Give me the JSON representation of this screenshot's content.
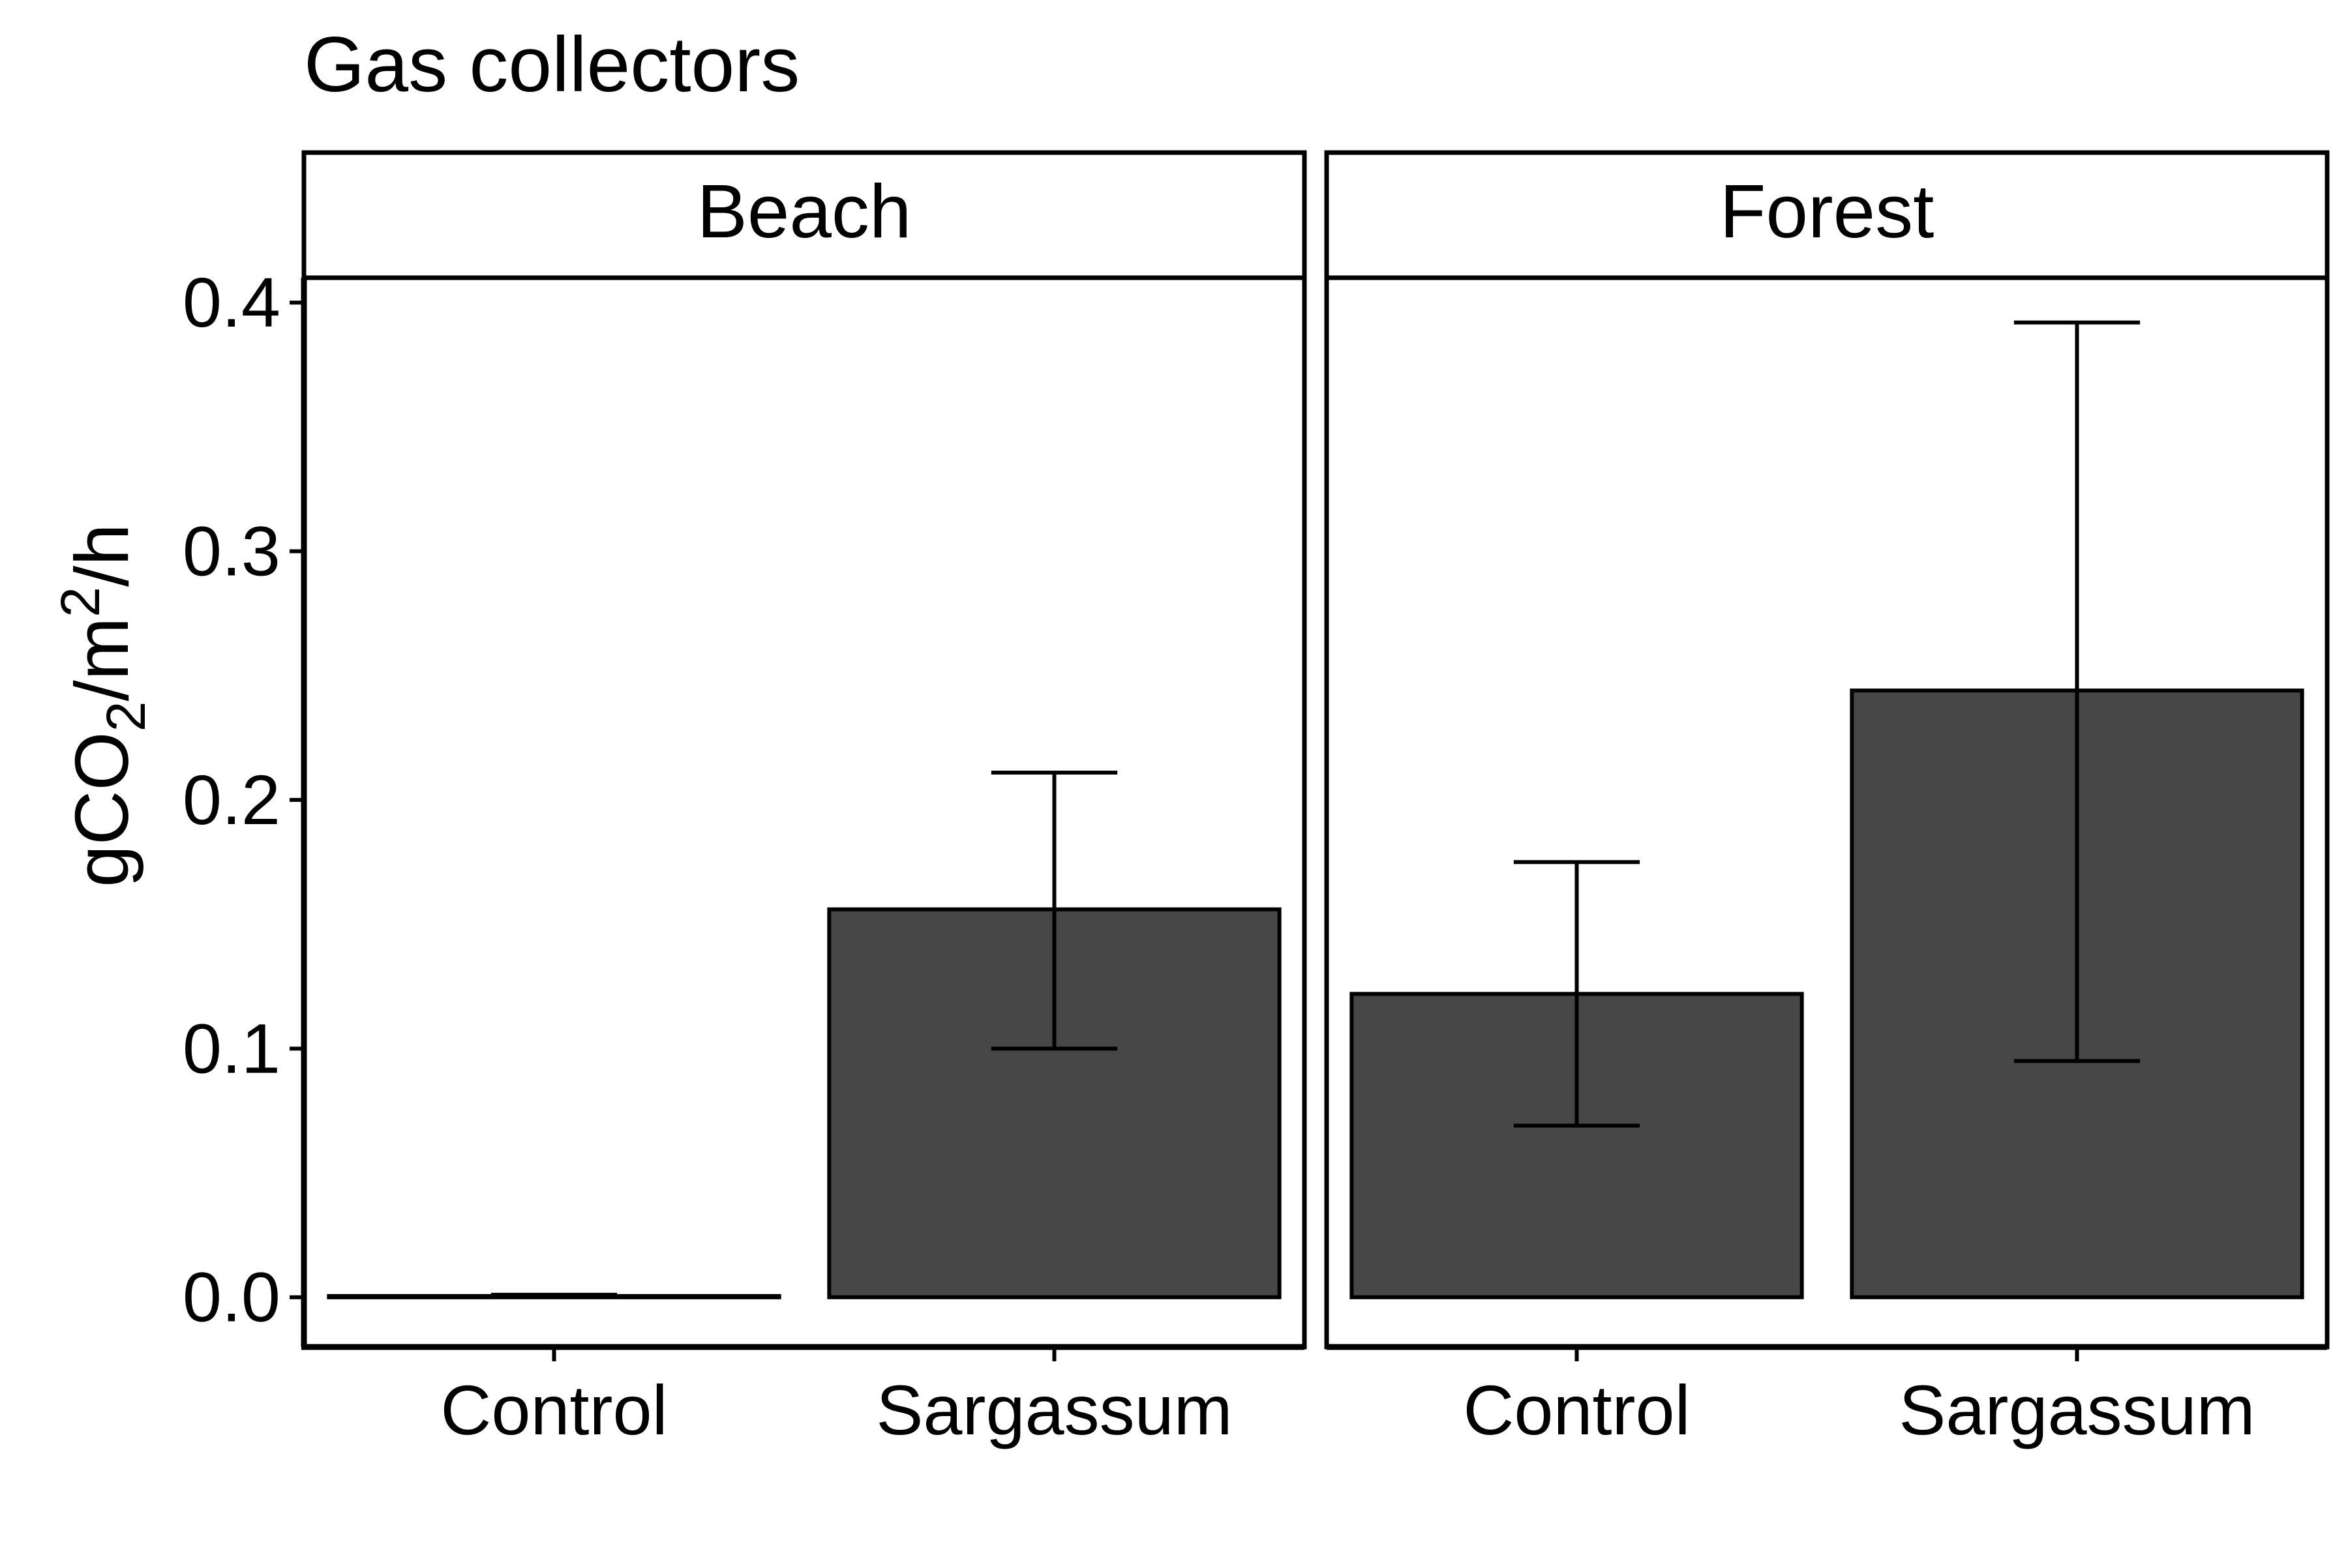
{
  "chart_data": {
    "type": "bar",
    "title": "Gas collectors",
    "xlabel": "",
    "ylabel": {
      "parts": [
        "gCO",
        "2",
        "/m",
        "2",
        "/h"
      ]
    },
    "ylim": [
      -0.02,
      0.41
    ],
    "yticks": [
      0.0,
      0.1,
      0.2,
      0.3,
      0.4
    ],
    "ytick_labels": [
      "0.0",
      "0.1",
      "0.2",
      "0.3",
      "0.4"
    ],
    "grid": false,
    "legend": "none",
    "bar_color": "#474747",
    "panels": [
      {
        "label": "Beach",
        "categories": [
          "Control",
          "Sargassum"
        ],
        "values": [
          0.0005,
          0.156
        ],
        "error_low": [
          0.0003,
          0.1
        ],
        "error_high": [
          0.001,
          0.211
        ]
      },
      {
        "label": "Forest",
        "categories": [
          "Control",
          "Sargassum"
        ],
        "values": [
          0.122,
          0.244
        ],
        "error_low": [
          0.069,
          0.095
        ],
        "error_high": [
          0.175,
          0.392
        ]
      }
    ]
  }
}
